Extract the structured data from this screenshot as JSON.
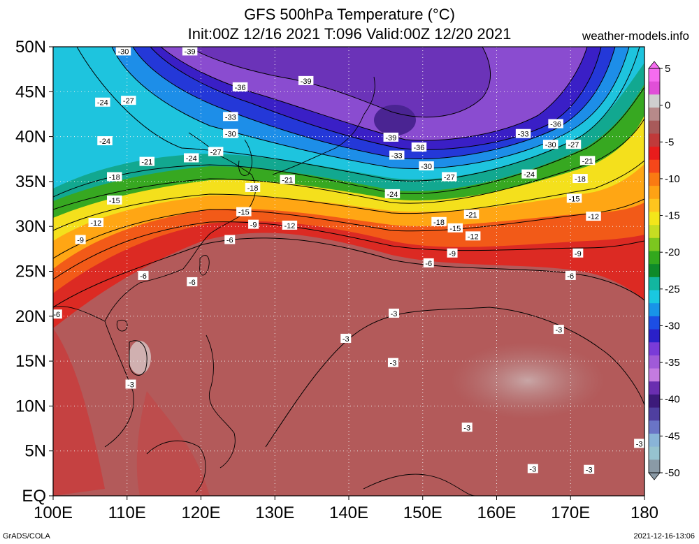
{
  "title": {
    "line1": "GFS 500hPa Temperature (°C)",
    "line2": "Init:00Z 12/16 2021 T:096 Valid:00Z 12/20 2021"
  },
  "site": "weather-models.info",
  "footer": {
    "left": "GrADS/COLA",
    "right": "2021-12-16-13:06"
  },
  "map": {
    "lat_ticks": [
      "50N",
      "45N",
      "40N",
      "35N",
      "30N",
      "25N",
      "20N",
      "15N",
      "10N",
      "5N",
      "EQ"
    ],
    "lon_ticks": [
      "100E",
      "110E",
      "120E",
      "130E",
      "140E",
      "150E",
      "160E",
      "170E",
      "180"
    ],
    "contour_labels": [
      {
        "text": "-30",
        "lon": 109.5,
        "lat": 49.5
      },
      {
        "text": "-39",
        "lon": 118.5,
        "lat": 49.5
      },
      {
        "text": "-36",
        "lon": 125.3,
        "lat": 45.5
      },
      {
        "text": "-39",
        "lon": 134.2,
        "lat": 46.2
      },
      {
        "text": "-24",
        "lon": 106.7,
        "lat": 43.8
      },
      {
        "text": "-27",
        "lon": 110.2,
        "lat": 44.0
      },
      {
        "text": "-33",
        "lon": 124.0,
        "lat": 42.2
      },
      {
        "text": "-30",
        "lon": 124.0,
        "lat": 40.3
      },
      {
        "text": "-39",
        "lon": 145.7,
        "lat": 39.9
      },
      {
        "text": "-36",
        "lon": 149.5,
        "lat": 38.8
      },
      {
        "text": "-33",
        "lon": 146.5,
        "lat": 37.9
      },
      {
        "text": "-30",
        "lon": 150.5,
        "lat": 36.7
      },
      {
        "text": "-36",
        "lon": 168.0,
        "lat": 41.4
      },
      {
        "text": "-33",
        "lon": 163.6,
        "lat": 40.3
      },
      {
        "text": "-30",
        "lon": 167.3,
        "lat": 39.1
      },
      {
        "text": "-27",
        "lon": 170.4,
        "lat": 39.1
      },
      {
        "text": "-24",
        "lon": 107.0,
        "lat": 39.5
      },
      {
        "text": "-24",
        "lon": 118.7,
        "lat": 37.6
      },
      {
        "text": "-27",
        "lon": 122.0,
        "lat": 38.3
      },
      {
        "text": "-21",
        "lon": 112.7,
        "lat": 37.2
      },
      {
        "text": "-21",
        "lon": 131.7,
        "lat": 35.2
      },
      {
        "text": "-18",
        "lon": 108.3,
        "lat": 35.5
      },
      {
        "text": "-18",
        "lon": 127.0,
        "lat": 34.3
      },
      {
        "text": "-27",
        "lon": 153.6,
        "lat": 35.5
      },
      {
        "text": "-24",
        "lon": 145.9,
        "lat": 33.6
      },
      {
        "text": "-24",
        "lon": 164.4,
        "lat": 35.8
      },
      {
        "text": "-18",
        "lon": 171.3,
        "lat": 35.3
      },
      {
        "text": "-21",
        "lon": 172.3,
        "lat": 37.3
      },
      {
        "text": "-15",
        "lon": 108.3,
        "lat": 32.9
      },
      {
        "text": "-15",
        "lon": 170.5,
        "lat": 33.1
      },
      {
        "text": "-15",
        "lon": 125.8,
        "lat": 31.6
      },
      {
        "text": "-21",
        "lon": 156.6,
        "lat": 31.3
      },
      {
        "text": "-18",
        "lon": 152.2,
        "lat": 30.5
      },
      {
        "text": "-12",
        "lon": 105.8,
        "lat": 30.4
      },
      {
        "text": "-9",
        "lon": 127.1,
        "lat": 30.2
      },
      {
        "text": "-12",
        "lon": 132.0,
        "lat": 30.1
      },
      {
        "text": "-15",
        "lon": 154.4,
        "lat": 29.8
      },
      {
        "text": "-12",
        "lon": 156.8,
        "lat": 28.9
      },
      {
        "text": "-12",
        "lon": 173.1,
        "lat": 31.1
      },
      {
        "text": "-9",
        "lon": 103.7,
        "lat": 28.5
      },
      {
        "text": "-6",
        "lon": 123.9,
        "lat": 28.5
      },
      {
        "text": "-9",
        "lon": 154.0,
        "lat": 27.0
      },
      {
        "text": "-9",
        "lon": 171.0,
        "lat": 27.0
      },
      {
        "text": "-6",
        "lon": 150.8,
        "lat": 25.9
      },
      {
        "text": "-6",
        "lon": 112.2,
        "lat": 24.5
      },
      {
        "text": "-6",
        "lon": 118.8,
        "lat": 23.8
      },
      {
        "text": "-6",
        "lon": 170.0,
        "lat": 24.5
      },
      {
        "text": "-6",
        "lon": 100.5,
        "lat": 20.2
      },
      {
        "text": "-3",
        "lon": 146.1,
        "lat": 20.3
      },
      {
        "text": "-3",
        "lon": 139.6,
        "lat": 17.5
      },
      {
        "text": "-3",
        "lon": 168.4,
        "lat": 18.5
      },
      {
        "text": "-3",
        "lon": 146.0,
        "lat": 14.8
      },
      {
        "text": "-3",
        "lon": 110.5,
        "lat": 12.4
      },
      {
        "text": "-3",
        "lon": 156.0,
        "lat": 7.6
      },
      {
        "text": "-3",
        "lon": 179.3,
        "lat": 5.8
      },
      {
        "text": "-3",
        "lon": 164.9,
        "lat": 3.0
      },
      {
        "text": "-3",
        "lon": 172.5,
        "lat": 2.9
      }
    ]
  },
  "colorbar": {
    "ticks": [
      "5",
      "0",
      "-5",
      "-10",
      "-15",
      "-20",
      "-25",
      "-30",
      "-35",
      "-40",
      "-45",
      "-50"
    ],
    "colors": [
      "#f66cf0",
      "#e04fd8",
      "#cfcfcf",
      "#b78a8a",
      "#a85a5a",
      "#c03a3a",
      "#e81c1c",
      "#f5471a",
      "#fa7a12",
      "#ffa214",
      "#ffc51e",
      "#f4e61a",
      "#c6dd22",
      "#7cc71f",
      "#33a81d",
      "#0e8a2a",
      "#12b6a0",
      "#1ac8e0",
      "#1894e8",
      "#1c4ee4",
      "#2a20c8",
      "#7a3bd8",
      "#a05ad8",
      "#c47be0",
      "#6a2eb0",
      "#3c1a7a",
      "#4f3fa0",
      "#6a74c6",
      "#89b4d8",
      "#96c3cf",
      "#8a9aa6"
    ]
  }
}
